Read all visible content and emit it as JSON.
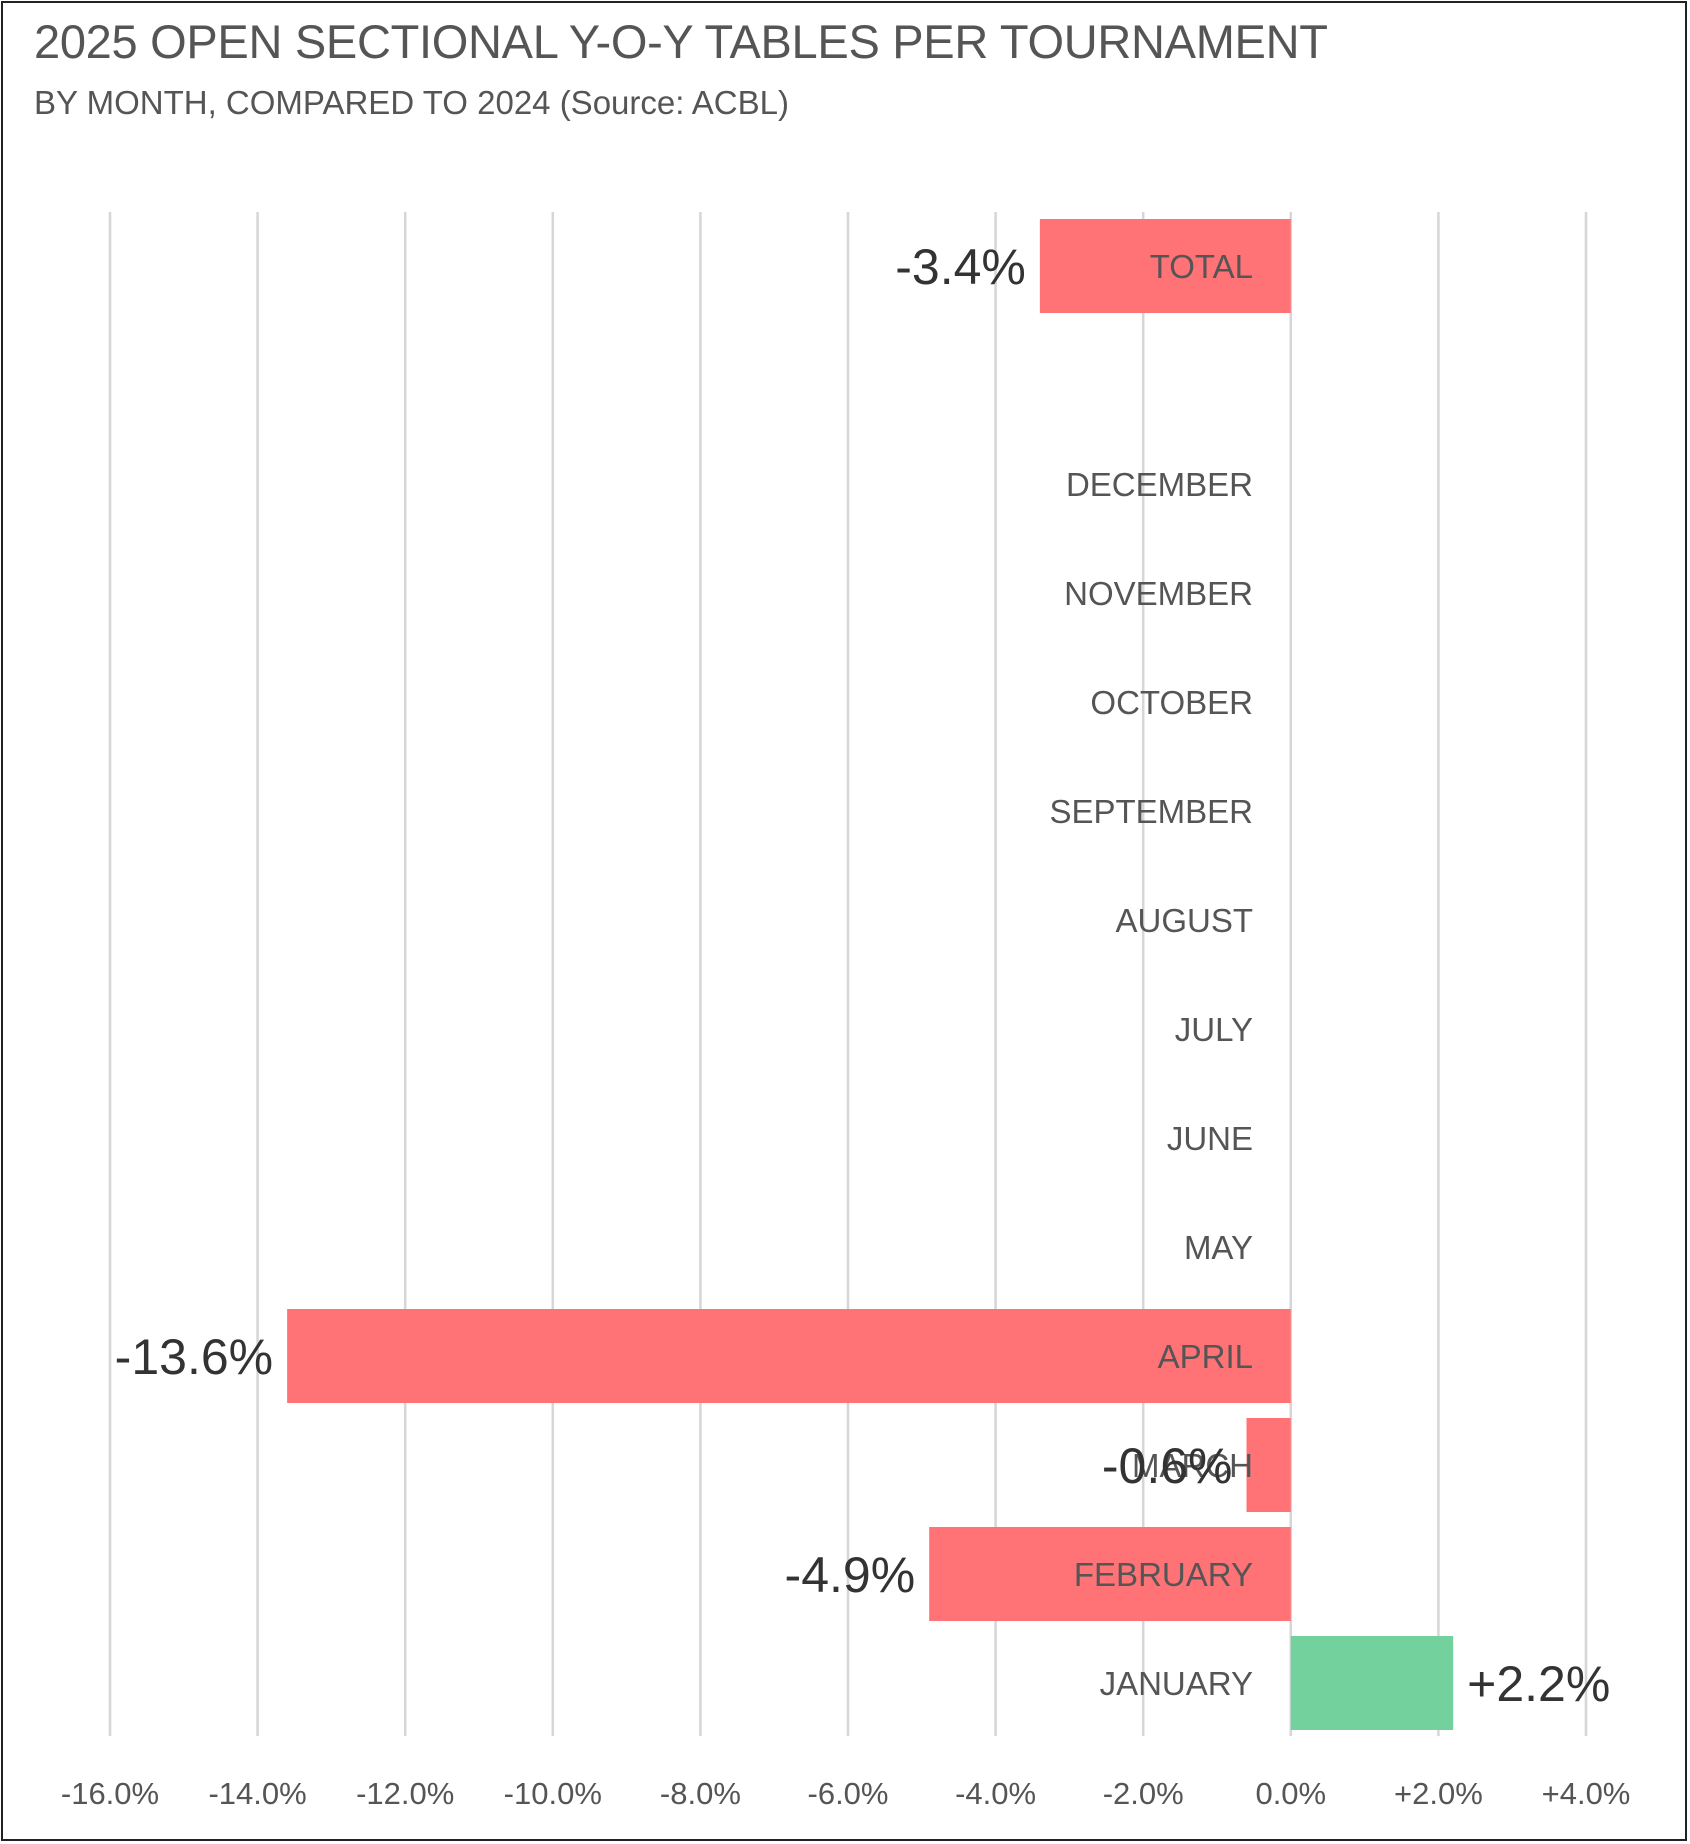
{
  "chart_data": {
    "type": "bar",
    "orientation": "horizontal",
    "title": "2025 OPEN SECTIONAL Y-O-Y TABLES PER TOURNAMENT",
    "subtitle": "BY MONTH, COMPARED TO 2024 (Source: ACBL)",
    "categories": [
      "TOTAL",
      "",
      "DECEMBER",
      "NOVEMBER",
      "OCTOBER",
      "SEPTEMBER",
      "AUGUST",
      "JULY",
      "JUNE",
      "MAY",
      "APRIL",
      "MARCH",
      "FEBRUARY",
      "JANUARY"
    ],
    "values": [
      -3.4,
      null,
      null,
      null,
      null,
      null,
      null,
      null,
      null,
      null,
      -13.6,
      -0.6,
      -4.9,
      2.2
    ],
    "data_labels": [
      "-3.4%",
      "",
      "",
      "",
      "",
      "",
      "",
      "",
      "",
      "",
      "-13.6%",
      "-0.6%",
      "-4.9%",
      "+2.2%"
    ],
    "xlim": [
      -16.0,
      4.0
    ],
    "xticks": [
      -16,
      -14,
      -12,
      -10,
      -8,
      -6,
      -4,
      -2,
      0,
      2,
      4
    ],
    "xtick_labels": [
      "-16.0%",
      "-14.0%",
      "-12.0%",
      "-10.0%",
      "-8.0%",
      "-6.0%",
      "-4.0%",
      "-2.0%",
      "0.0%",
      "+2.0%",
      "+4.0%"
    ],
    "grid": true,
    "legend": "none",
    "colors": {
      "negative": "#ff7276",
      "positive": "#72d19c",
      "grid": "#d6d6d6",
      "text": "#555555"
    }
  }
}
